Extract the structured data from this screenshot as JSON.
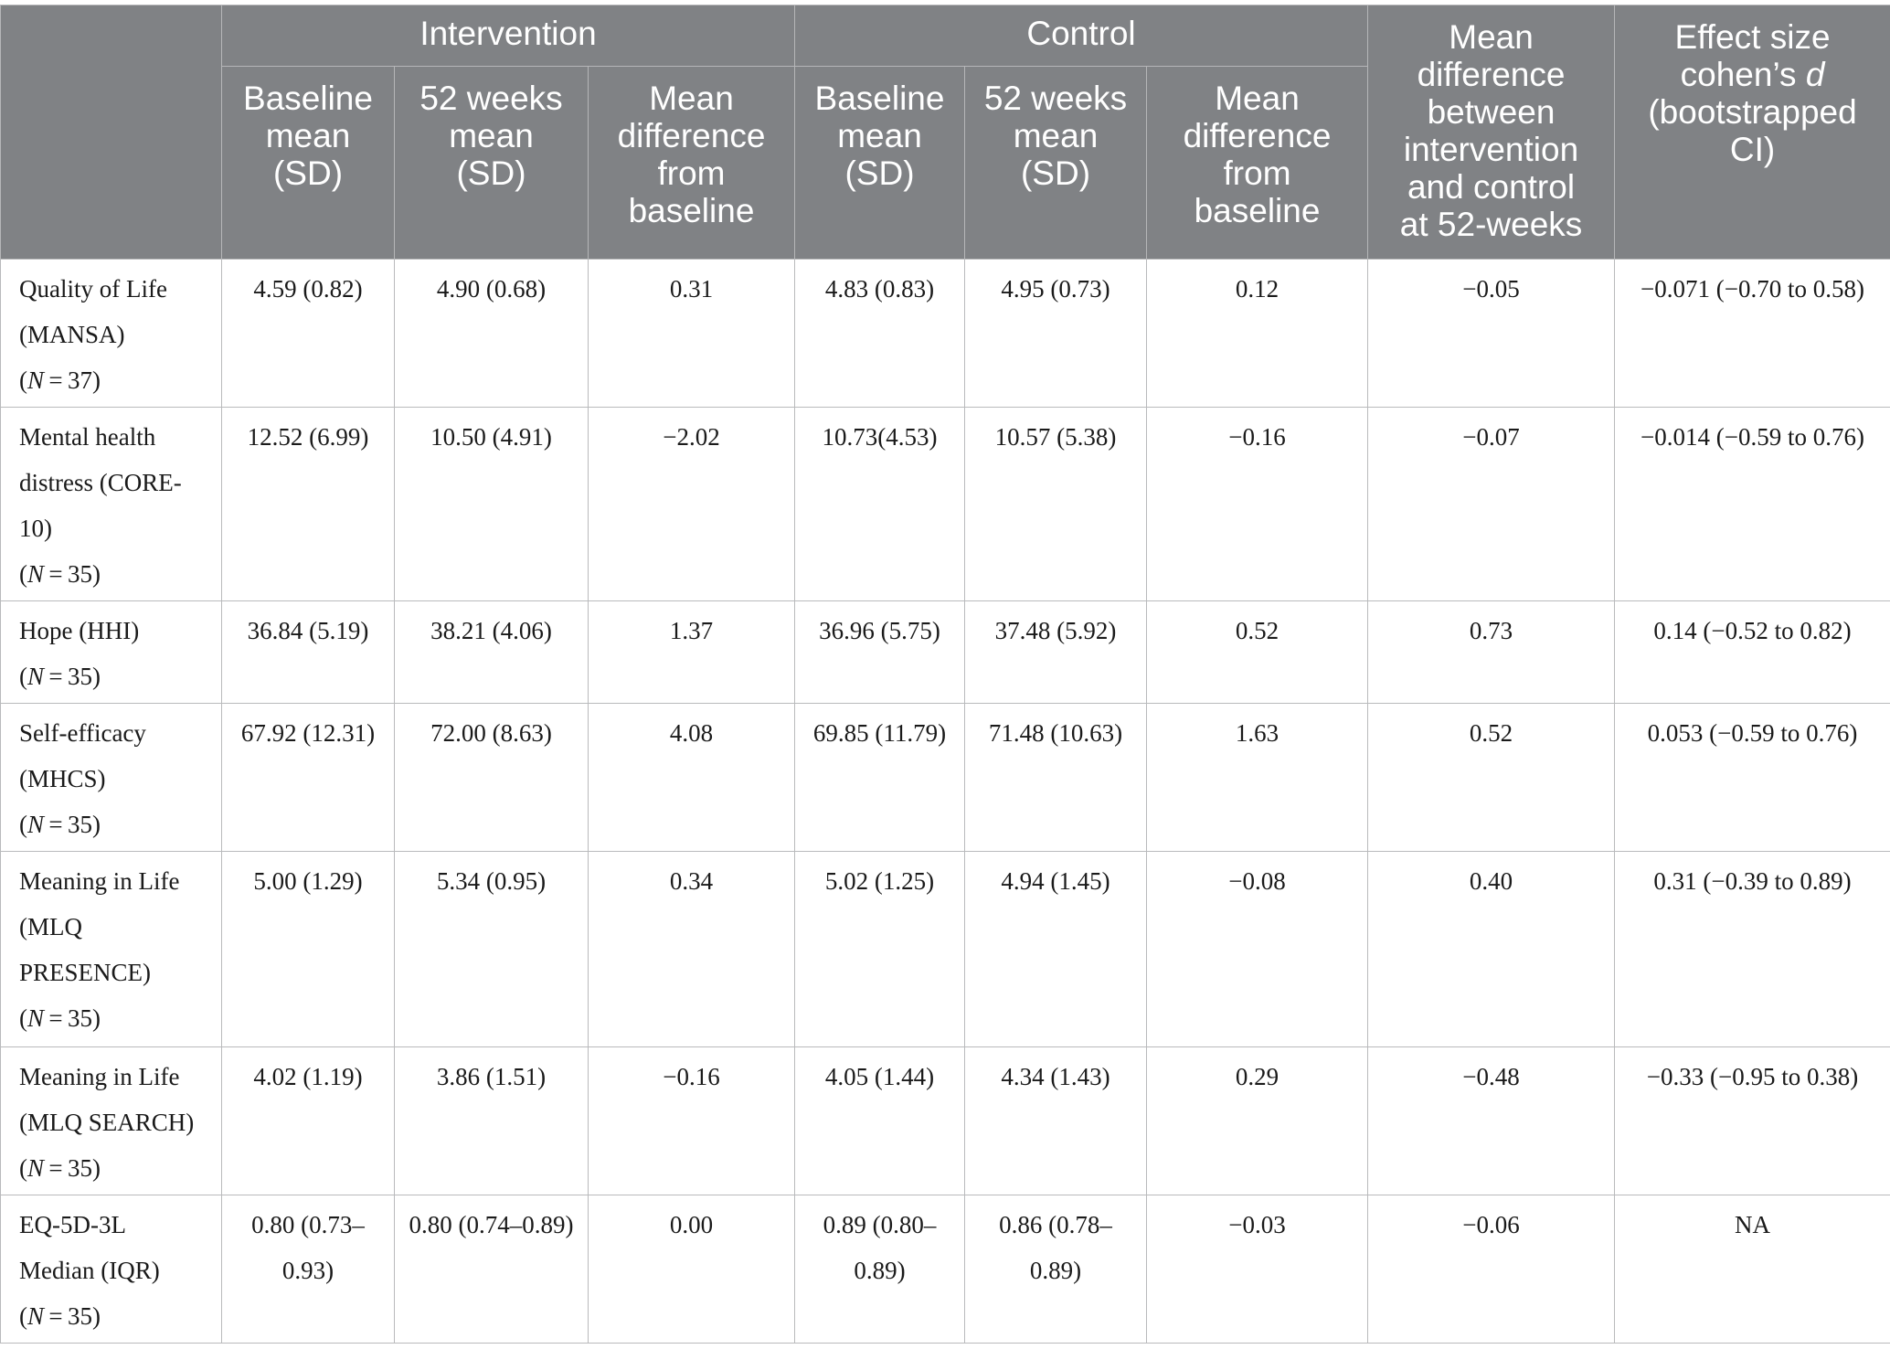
{
  "header": {
    "intervention": "Intervention",
    "control": "Control",
    "between_diff": [
      "Mean",
      "difference",
      "between",
      "intervention",
      "and control",
      "at 52-weeks"
    ],
    "effect_size_lines": [
      "Effect size",
      "cohen’s ",
      "d",
      "(bootstrapped",
      "CI)"
    ],
    "sub": {
      "baseline": [
        "Baseline",
        "mean",
        "(SD)"
      ],
      "week52": [
        "52 weeks",
        "mean",
        "(SD)"
      ],
      "mean_diff": [
        "Mean",
        "difference",
        "from",
        "baseline"
      ]
    }
  },
  "rows": [
    {
      "label": [
        "Quality of Life",
        "(MANSA)"
      ],
      "n": "N = 37",
      "values": [
        "4.59 (0.82)",
        "4.90 (0.68)",
        "0.31",
        "4.83 (0.83)",
        "4.95 (0.73)",
        "0.12",
        "−0.05",
        "−0.071 (−0.70 to 0.58)"
      ]
    },
    {
      "label": [
        "Mental health",
        "distress (CORE-",
        "10)"
      ],
      "n": "N = 35",
      "values": [
        "12.52 (6.99)",
        "10.50 (4.91)",
        "−2.02",
        "10.73(4.53)",
        "10.57 (5.38)",
        "−0.16",
        "−0.07",
        "−0.014 (−0.59 to 0.76)"
      ]
    },
    {
      "label": [
        "Hope (HHI)"
      ],
      "n": "N = 35",
      "values": [
        "36.84 (5.19)",
        "38.21 (4.06)",
        "1.37",
        "36.96 (5.75)",
        "37.48 (5.92)",
        "0.52",
        "0.73",
        "0.14 (−0.52 to 0.82)"
      ]
    },
    {
      "label": [
        "Self-efficacy",
        "(MHCS)"
      ],
      "n": "N = 35",
      "values": [
        "67.92 (12.31)",
        "72.00 (8.63)",
        "4.08",
        "69.85 (11.79)",
        "71.48 (10.63)",
        "1.63",
        "0.52",
        "0.053 (−0.59 to 0.76)"
      ]
    },
    {
      "label": [
        "Meaning in Life",
        "(MLQ",
        "PRESENCE)"
      ],
      "n": "N = 35",
      "values": [
        "5.00 (1.29)",
        "5.34 (0.95)",
        "0.34",
        "5.02 (1.25)",
        "4.94 (1.45)",
        "−0.08",
        "0.40",
        "0.31 (−0.39 to 0.89)"
      ]
    },
    {
      "label": [
        "Meaning in Life",
        "(MLQ SEARCH)"
      ],
      "n": "N = 35",
      "values": [
        "4.02 (1.19)",
        "3.86 (1.51)",
        "−0.16",
        "4.05 (1.44)",
        "4.34 (1.43)",
        "0.29",
        "−0.48",
        "−0.33 (−0.95 to 0.38)"
      ]
    },
    {
      "label": [
        "EQ-5D-3L",
        "Median (IQR)"
      ],
      "n": "N = 35",
      "values": [
        "0.80 (0.73–0.93)",
        "0.80 (0.74–0.89)",
        "0.00",
        "0.89 (0.80–0.89)",
        "0.86 (0.78–0.89)",
        "−0.03",
        "−0.06",
        "NA"
      ]
    }
  ]
}
